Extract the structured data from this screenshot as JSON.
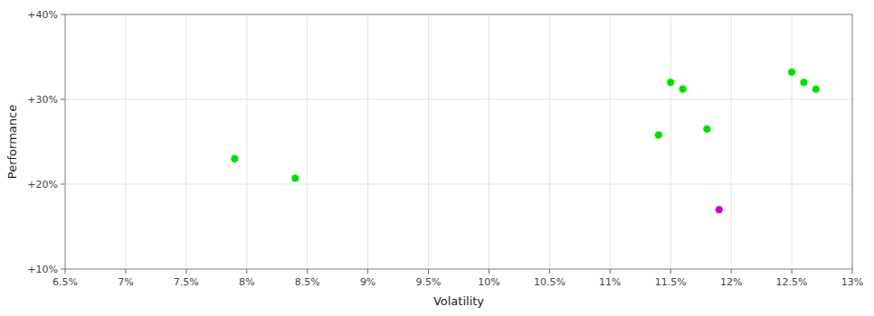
{
  "chart_data": {
    "type": "scatter",
    "xlabel": "Volatility",
    "ylabel": "Performance",
    "xlim": [
      0.065,
      0.13
    ],
    "ylim": [
      0.1,
      0.4
    ],
    "xticks": [
      {
        "value": 0.065,
        "label": "6.5%"
      },
      {
        "value": 0.07,
        "label": "7%"
      },
      {
        "value": 0.075,
        "label": "7.5%"
      },
      {
        "value": 0.08,
        "label": "8%"
      },
      {
        "value": 0.085,
        "label": "8.5%"
      },
      {
        "value": 0.09,
        "label": "9%"
      },
      {
        "value": 0.095,
        "label": "9.5%"
      },
      {
        "value": 0.1,
        "label": "10%"
      },
      {
        "value": 0.105,
        "label": "10.5%"
      },
      {
        "value": 0.11,
        "label": "11%"
      },
      {
        "value": 0.115,
        "label": "11.5%"
      },
      {
        "value": 0.12,
        "label": "12%"
      },
      {
        "value": 0.125,
        "label": "12.5%"
      },
      {
        "value": 0.13,
        "label": "13%"
      }
    ],
    "yticks": [
      {
        "value": 0.1,
        "label": "+10%"
      },
      {
        "value": 0.2,
        "label": "+20%"
      },
      {
        "value": 0.3,
        "label": "+30%"
      },
      {
        "value": 0.4,
        "label": "+40%"
      }
    ],
    "grid": true,
    "series": [
      {
        "color": "#00dd00",
        "x": [
          0.079,
          0.084,
          0.114,
          0.118,
          0.115,
          0.116,
          0.125,
          0.126,
          0.127
        ],
        "values": [
          0.23,
          0.207,
          0.258,
          0.265,
          0.32,
          0.312,
          0.332,
          0.32,
          0.312
        ]
      },
      {
        "color": "#cc00cc",
        "x": [
          0.119
        ],
        "values": [
          0.17
        ]
      }
    ]
  }
}
